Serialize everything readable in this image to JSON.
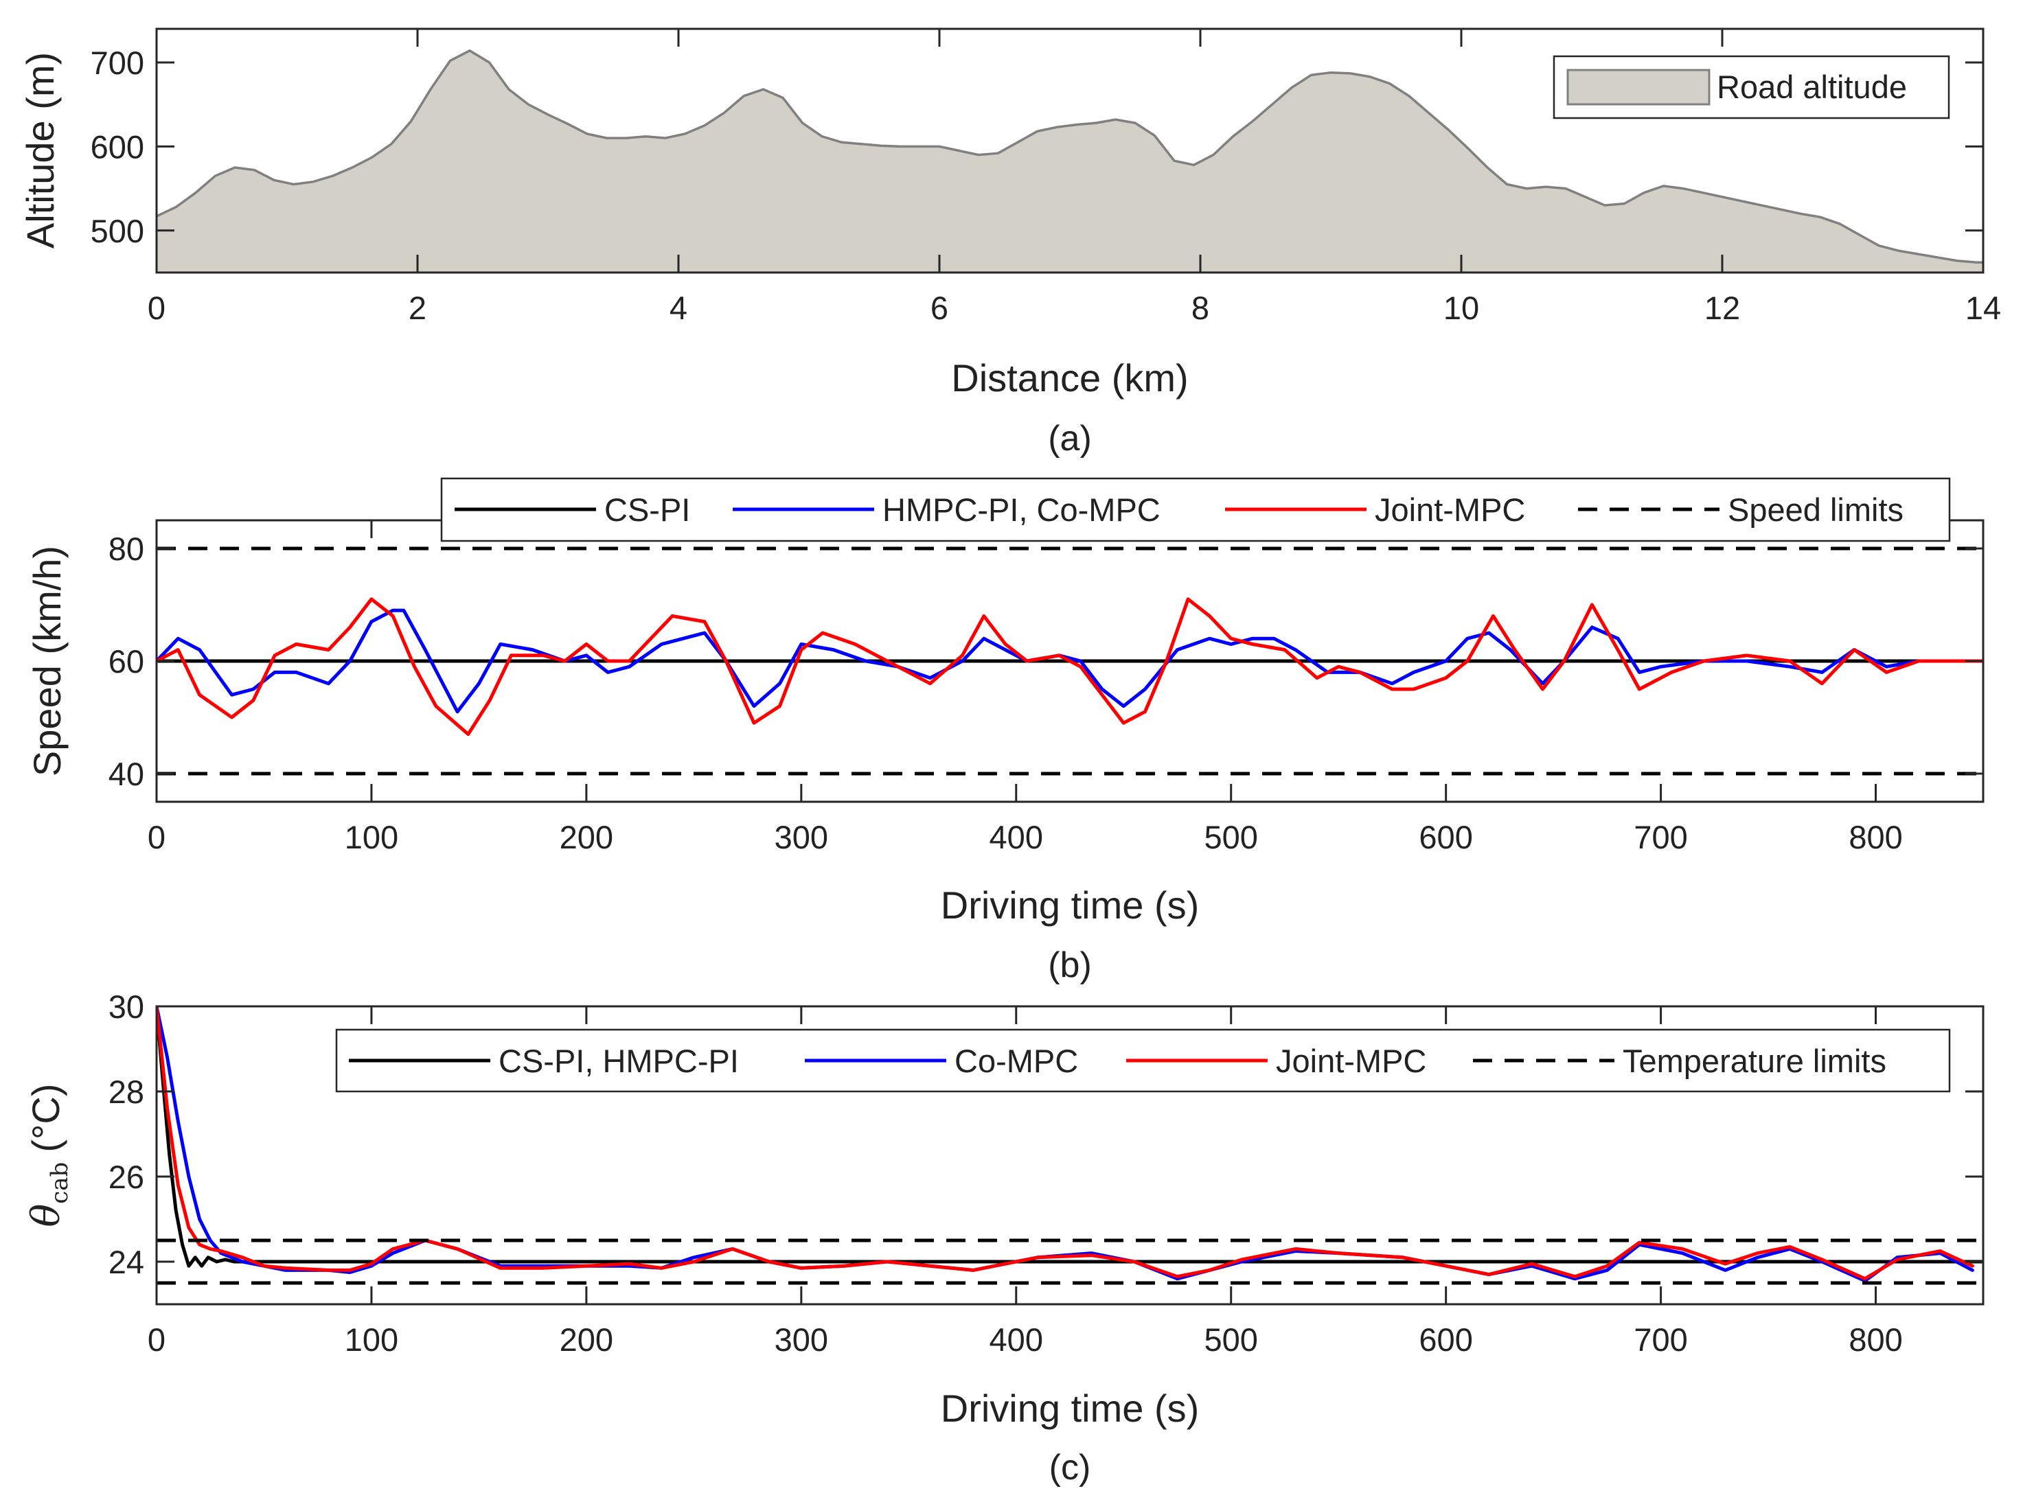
{
  "chart_data": [
    {
      "id": "a",
      "type": "area",
      "caption": "(a)",
      "xlabel": "Distance (km)",
      "ylabel": "Altitude (m)",
      "xlim": [
        0,
        14
      ],
      "ylim": [
        450,
        740
      ],
      "xticks": [
        0,
        2,
        4,
        6,
        8,
        10,
        12,
        14
      ],
      "yticks": [
        500,
        600,
        700
      ],
      "grid": false,
      "legend_position": "top-right",
      "series": [
        {
          "name": "Road altitude",
          "color": "#d3d0c8",
          "edge_color": "#808080",
          "x": [
            0,
            0.15,
            0.3,
            0.45,
            0.6,
            0.75,
            0.9,
            1.05,
            1.2,
            1.35,
            1.5,
            1.65,
            1.8,
            1.95,
            2.1,
            2.25,
            2.4,
            2.55,
            2.7,
            2.85,
            3.0,
            3.15,
            3.3,
            3.45,
            3.6,
            3.75,
            3.9,
            4.05,
            4.2,
            4.35,
            4.5,
            4.65,
            4.8,
            4.95,
            5.1,
            5.25,
            5.4,
            5.55,
            5.7,
            5.85,
            6.0,
            6.15,
            6.3,
            6.45,
            6.6,
            6.75,
            6.9,
            7.05,
            7.2,
            7.35,
            7.5,
            7.65,
            7.8,
            7.95,
            8.1,
            8.25,
            8.4,
            8.55,
            8.7,
            8.85,
            9.0,
            9.15,
            9.3,
            9.45,
            9.6,
            9.75,
            9.9,
            10.05,
            10.2,
            10.35,
            10.5,
            10.65,
            10.8,
            10.95,
            11.1,
            11.25,
            11.4,
            11.55,
            11.7,
            11.85,
            12.0,
            12.15,
            12.3,
            12.45,
            12.6,
            12.75,
            12.9,
            13.05,
            13.2,
            13.35,
            13.5,
            13.65,
            13.8,
            13.95,
            14.0
          ],
          "values": [
            517,
            528,
            545,
            565,
            575,
            572,
            560,
            555,
            558,
            565,
            575,
            587,
            603,
            630,
            668,
            702,
            714,
            700,
            668,
            650,
            638,
            627,
            615,
            610,
            610,
            612,
            610,
            615,
            625,
            640,
            660,
            668,
            658,
            628,
            612,
            605,
            603,
            601,
            600,
            600,
            600,
            595,
            590,
            592,
            605,
            618,
            623,
            626,
            628,
            632,
            628,
            613,
            583,
            578,
            590,
            612,
            630,
            650,
            670,
            685,
            688,
            687,
            683,
            675,
            660,
            640,
            620,
            598,
            575,
            555,
            550,
            552,
            550,
            540,
            530,
            532,
            545,
            553,
            550,
            545,
            540,
            535,
            530,
            525,
            520,
            516,
            508,
            495,
            482,
            476,
            472,
            468,
            464,
            462,
            462
          ]
        }
      ]
    },
    {
      "id": "b",
      "type": "line",
      "caption": "(b)",
      "xlabel": "Driving time (s)",
      "ylabel": "Speed (km/h)",
      "xlim": [
        0,
        850
      ],
      "ylim": [
        35,
        85
      ],
      "xticks": [
        0,
        100,
        200,
        300,
        400,
        500,
        600,
        700,
        800
      ],
      "yticks": [
        40,
        60,
        80
      ],
      "grid": false,
      "legend_position": "top",
      "series": [
        {
          "name": "CS-PI",
          "color": "#000000",
          "dash": "solid",
          "x": [
            0,
            850
          ],
          "values": [
            60,
            60
          ]
        },
        {
          "name": "HMPC-PI, Co-MPC",
          "color": "#0000ff",
          "dash": "solid",
          "x": [
            0,
            10,
            20,
            35,
            45,
            55,
            65,
            80,
            90,
            100,
            110,
            115,
            125,
            140,
            150,
            160,
            175,
            190,
            200,
            210,
            220,
            235,
            255,
            265,
            278,
            290,
            300,
            315,
            330,
            345,
            360,
            375,
            385,
            395,
            405,
            420,
            430,
            440,
            450,
            460,
            475,
            490,
            500,
            510,
            520,
            530,
            545,
            560,
            575,
            585,
            600,
            610,
            620,
            630,
            645,
            655,
            668,
            680,
            690,
            700,
            720,
            740,
            760,
            775,
            790,
            805,
            820,
            835,
            850
          ],
          "values": [
            60,
            64,
            62,
            54,
            55,
            58,
            58,
            56,
            60,
            67,
            69,
            69,
            62,
            51,
            56,
            63,
            62,
            60,
            61,
            58,
            59,
            63,
            65,
            60,
            52,
            56,
            63,
            62,
            60,
            59,
            57,
            60,
            64,
            62,
            60,
            61,
            60,
            55,
            52,
            55,
            62,
            64,
            63,
            64,
            64,
            62,
            58,
            58,
            56,
            58,
            60,
            64,
            65,
            62,
            56,
            60,
            66,
            64,
            58,
            59,
            60,
            60,
            59,
            58,
            62,
            59,
            60,
            60,
            60
          ]
        },
        {
          "name": "Joint-MPC",
          "color": "#ff0000",
          "dash": "solid",
          "x": [
            0,
            10,
            20,
            35,
            45,
            55,
            65,
            80,
            90,
            100,
            110,
            120,
            130,
            145,
            155,
            165,
            180,
            190,
            200,
            210,
            220,
            240,
            255,
            265,
            278,
            290,
            300,
            310,
            325,
            340,
            360,
            375,
            385,
            395,
            405,
            420,
            430,
            440,
            450,
            460,
            470,
            480,
            490,
            500,
            510,
            525,
            540,
            550,
            560,
            575,
            585,
            600,
            610,
            622,
            632,
            645,
            655,
            668,
            680,
            690,
            705,
            720,
            740,
            760,
            775,
            790,
            805,
            820,
            835,
            850
          ],
          "values": [
            60,
            62,
            54,
            50,
            53,
            61,
            63,
            62,
            66,
            71,
            68,
            59,
            52,
            47,
            53,
            61,
            61,
            60,
            63,
            60,
            60,
            68,
            67,
            60,
            49,
            52,
            62,
            65,
            63,
            60,
            56,
            61,
            68,
            63,
            60,
            61,
            59,
            54,
            49,
            51,
            60,
            71,
            68,
            64,
            63,
            62,
            57,
            59,
            58,
            55,
            55,
            57,
            60,
            68,
            62,
            55,
            60,
            70,
            62,
            55,
            58,
            60,
            61,
            60,
            56,
            62,
            58,
            60,
            60,
            60
          ]
        },
        {
          "name": "Speed limits",
          "color": "#000000",
          "dash": "dashed",
          "segments": [
            {
              "x": [
                0,
                850
              ],
              "values": [
                80,
                80
              ]
            },
            {
              "x": [
                0,
                850
              ],
              "values": [
                40,
                40
              ]
            }
          ]
        }
      ]
    },
    {
      "id": "c",
      "type": "line",
      "caption": "(c)",
      "xlabel": "Driving time (s)",
      "ylabel": "θcab (°C)",
      "ylabel_symbol": "θ",
      "ylabel_subscript": "cab",
      "ylabel_unit": "(°C)",
      "xlim": [
        0,
        850
      ],
      "ylim": [
        23,
        30
      ],
      "xticks": [
        0,
        100,
        200,
        300,
        400,
        500,
        600,
        700,
        800
      ],
      "yticks": [
        24,
        26,
        28,
        30
      ],
      "grid": false,
      "legend_position": "top-right",
      "series": [
        {
          "name": "CS-PI, HMPC-PI",
          "color": "#000000",
          "dash": "solid",
          "x": [
            0,
            3,
            6,
            9,
            12,
            15,
            18,
            21,
            24,
            28,
            32,
            36,
            40,
            850
          ],
          "values": [
            30,
            28.2,
            26.5,
            25.2,
            24.4,
            23.9,
            24.1,
            23.9,
            24.1,
            24.0,
            24.05,
            24.0,
            24.0,
            24.0
          ]
        },
        {
          "name": "Co-MPC",
          "color": "#0000ff",
          "dash": "solid",
          "x": [
            0,
            5,
            10,
            15,
            20,
            25,
            30,
            40,
            50,
            60,
            80,
            90,
            100,
            110,
            125,
            140,
            160,
            180,
            200,
            220,
            235,
            250,
            268,
            285,
            300,
            320,
            340,
            360,
            380,
            395,
            410,
            435,
            455,
            475,
            490,
            505,
            530,
            550,
            580,
            600,
            620,
            640,
            660,
            675,
            690,
            710,
            730,
            745,
            760,
            775,
            795,
            810,
            830,
            845
          ],
          "values": [
            30,
            28.8,
            27.3,
            26.0,
            25.0,
            24.5,
            24.2,
            24.0,
            23.9,
            23.8,
            23.8,
            23.75,
            23.9,
            24.2,
            24.5,
            24.3,
            23.9,
            23.9,
            23.9,
            23.9,
            23.85,
            24.1,
            24.3,
            24.0,
            23.85,
            23.9,
            24.0,
            23.9,
            23.8,
            23.95,
            24.1,
            24.2,
            24.0,
            23.6,
            23.8,
            24.0,
            24.25,
            24.2,
            24.1,
            23.9,
            23.7,
            23.9,
            23.6,
            23.8,
            24.4,
            24.2,
            23.8,
            24.1,
            24.3,
            24.0,
            23.55,
            24.1,
            24.2,
            23.8
          ]
        },
        {
          "name": "Joint-MPC",
          "color": "#ff0000",
          "dash": "solid",
          "x": [
            0,
            5,
            10,
            15,
            20,
            25,
            30,
            40,
            50,
            60,
            80,
            90,
            100,
            110,
            125,
            140,
            160,
            180,
            200,
            220,
            235,
            250,
            268,
            285,
            300,
            320,
            340,
            360,
            380,
            395,
            410,
            435,
            455,
            475,
            490,
            505,
            530,
            550,
            580,
            600,
            620,
            640,
            660,
            675,
            690,
            710,
            730,
            745,
            760,
            775,
            795,
            810,
            830,
            845
          ],
          "values": [
            30,
            27.6,
            25.8,
            24.8,
            24.4,
            24.3,
            24.25,
            24.1,
            23.9,
            23.85,
            23.8,
            23.8,
            23.95,
            24.3,
            24.5,
            24.3,
            23.85,
            23.85,
            23.9,
            23.95,
            23.85,
            24.0,
            24.3,
            24.0,
            23.85,
            23.9,
            24.0,
            23.9,
            23.8,
            23.95,
            24.1,
            24.15,
            24.0,
            23.65,
            23.8,
            24.05,
            24.3,
            24.2,
            24.1,
            23.9,
            23.7,
            23.95,
            23.65,
            23.9,
            24.45,
            24.3,
            23.95,
            24.2,
            24.35,
            24.05,
            23.6,
            24.05,
            24.25,
            23.9
          ]
        },
        {
          "name": "Temperature limits",
          "color": "#000000",
          "dash": "dashed",
          "segments": [
            {
              "x": [
                0,
                850
              ],
              "values": [
                24.5,
                24.5
              ]
            },
            {
              "x": [
                0,
                850
              ],
              "values": [
                23.5,
                23.5
              ]
            }
          ]
        }
      ]
    }
  ]
}
